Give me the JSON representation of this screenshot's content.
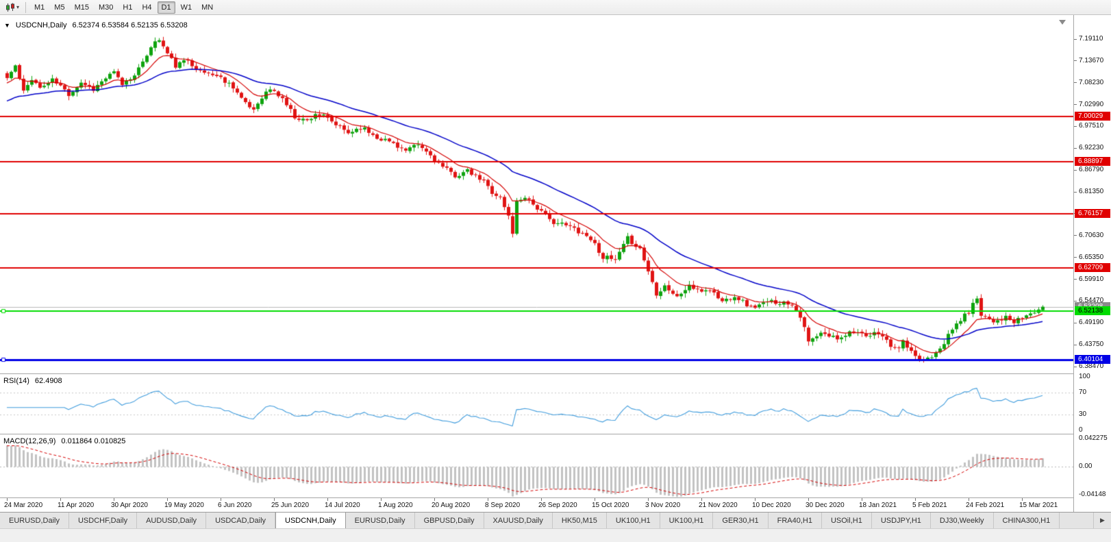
{
  "toolbar": {
    "caret": "▾",
    "timeframes": [
      {
        "label": "M1",
        "active": false
      },
      {
        "label": "M5",
        "active": false
      },
      {
        "label": "M15",
        "active": false
      },
      {
        "label": "M30",
        "active": false
      },
      {
        "label": "H1",
        "active": false
      },
      {
        "label": "H4",
        "active": false
      },
      {
        "label": "D1",
        "active": true
      },
      {
        "label": "W1",
        "active": false
      },
      {
        "label": "MN",
        "active": false
      }
    ]
  },
  "icons": {
    "chart_type": "candlestick-chart-icon",
    "tab_scroll_right": "▶"
  },
  "chart": {
    "collapse_glyph": "▼",
    "symbol_period": "USDCNH,Daily",
    "ohlc": "6.52374 6.53584 6.52135 6.53208"
  },
  "bid": {
    "label": "6.53208",
    "price": 6.53208
  },
  "levels": [
    {
      "label": "7.00029",
      "price": 7.00029,
      "color": "#E00000",
      "text_color": "#FFFFFF",
      "thickness": 2,
      "handle": false
    },
    {
      "label": "6.88897",
      "price": 6.88897,
      "color": "#E00000",
      "text_color": "#FFFFFF",
      "thickness": 2,
      "handle": false
    },
    {
      "label": "6.76157",
      "price": 6.76157,
      "color": "#E00000",
      "text_color": "#FFFFFF",
      "thickness": 2,
      "handle": false
    },
    {
      "label": "6.62709",
      "price": 6.62709,
      "color": "#E00000",
      "text_color": "#FFFFFF",
      "thickness": 2,
      "handle": false
    },
    {
      "label": "6.52138",
      "price": 6.52138,
      "color": "#00DC00",
      "text_color": "#000000",
      "thickness": 2,
      "handle": true
    },
    {
      "label": "6.40104",
      "price": 6.40104,
      "color": "#0000E6",
      "text_color": "#FFFFFF",
      "thickness": 3,
      "handle": true
    }
  ],
  "price_axis": {
    "labels": [
      "7.19110",
      "7.13670",
      "7.08230",
      "7.02990",
      "6.97510",
      "6.92230",
      "6.86790",
      "6.81350",
      "6.76030",
      "6.70630",
      "6.65350",
      "6.59910",
      "6.54470",
      "6.49190",
      "6.43750",
      "6.38470"
    ]
  },
  "rsi": {
    "name": "RSI(14)",
    "value": "62.4908",
    "period": 14,
    "levels": [
      {
        "label": "100",
        "value": 100
      },
      {
        "label": "70",
        "value": 70
      },
      {
        "label": "30",
        "value": 30
      },
      {
        "label": "0",
        "value": 0
      }
    ]
  },
  "macd": {
    "name": "MACD(12,26,9)",
    "values": "0.011864 0.010825",
    "axis": [
      {
        "label": "0.042275",
        "value": 0.042275
      },
      {
        "label": "0.00",
        "value": 0
      },
      {
        "label": "-0.04148",
        "value": -0.04148
      }
    ]
  },
  "date_axis": [
    "24 Mar 2020",
    "11 Apr 2020",
    "30 Apr 2020",
    "19 May 2020",
    "6 Jun 2020",
    "25 Jun 2020",
    "14 Jul 2020",
    "1 Aug 2020",
    "20 Aug 2020",
    "8 Sep 2020",
    "26 Sep 2020",
    "15 Oct 2020",
    "3 Nov 2020",
    "21 Nov 2020",
    "10 Dec 2020",
    "30 Dec 2020",
    "18 Jan 2021",
    "5 Feb 2021",
    "24 Feb 2021",
    "15 Mar 2021"
  ],
  "tabs": [
    {
      "label": "EURUSD,Daily",
      "active": false
    },
    {
      "label": "USDCHF,Daily",
      "active": false
    },
    {
      "label": "AUDUSD,Daily",
      "active": false
    },
    {
      "label": "USDCAD,Daily",
      "active": false
    },
    {
      "label": "USDCNH,Daily",
      "active": true
    },
    {
      "label": "EURUSD,Daily",
      "active": false
    },
    {
      "label": "GBPUSD,Daily",
      "active": false
    },
    {
      "label": "XAUUSD,Daily",
      "active": false
    },
    {
      "label": "HK50,M15",
      "active": false
    },
    {
      "label": "UK100,H1",
      "active": false
    },
    {
      "label": "UK100,H1",
      "active": false
    },
    {
      "label": "GER30,H1",
      "active": false
    },
    {
      "label": "FRA40,H1",
      "active": false
    },
    {
      "label": "USOil,H1",
      "active": false
    },
    {
      "label": "USDJPY,H1",
      "active": false
    },
    {
      "label": "DJ30,Weekly",
      "active": false
    },
    {
      "label": "CHINA300,H1",
      "active": false
    }
  ],
  "colors": {
    "candle_up": "#0FA30F",
    "candle_down": "#E01414",
    "ma_fast": "#D40000",
    "ma_slow": "#0000C8",
    "rsi_line": "#3E9BDC",
    "macd_hist": "#C2C2C2",
    "macd_signal": "#D40000",
    "level_red": "#E00000",
    "level_green": "#00DC00",
    "level_blue": "#0000E6",
    "bid_line": "#B8B8B8"
  },
  "chart_data": {
    "type": "candlestick",
    "symbol": "USDCNH",
    "period": "Daily",
    "candle_count": 253,
    "seed": 11,
    "y_top": 7.1911,
    "y_bottom": 6.3847,
    "last_candle": {
      "o": 6.52374,
      "h": 6.53584,
      "l": 6.52135,
      "c": 6.53208
    },
    "close_anchors": [
      [
        0,
        7.095
      ],
      [
        2,
        7.125
      ],
      [
        4,
        7.06
      ],
      [
        6,
        7.095
      ],
      [
        8,
        7.07
      ],
      [
        11,
        7.09
      ],
      [
        13,
        7.075
      ],
      [
        15,
        7.055
      ],
      [
        18,
        7.085
      ],
      [
        21,
        7.068
      ],
      [
        24,
        7.095
      ],
      [
        26,
        7.108
      ],
      [
        28,
        7.08
      ],
      [
        30,
        7.095
      ],
      [
        33,
        7.13
      ],
      [
        35,
        7.175
      ],
      [
        37,
        7.19
      ],
      [
        39,
        7.155
      ],
      [
        41,
        7.125
      ],
      [
        44,
        7.14
      ],
      [
        47,
        7.11
      ],
      [
        50,
        7.105
      ],
      [
        52,
        7.095
      ],
      [
        55,
        7.075
      ],
      [
        58,
        7.03
      ],
      [
        60,
        7.018
      ],
      [
        62,
        7.05
      ],
      [
        64,
        7.068
      ],
      [
        67,
        7.045
      ],
      [
        70,
        7.0
      ],
      [
        73,
        6.99
      ],
      [
        75,
        7.008
      ],
      [
        77,
        7.0
      ],
      [
        80,
        6.98
      ],
      [
        83,
        6.96
      ],
      [
        86,
        6.975
      ],
      [
        90,
        6.95
      ],
      [
        94,
        6.935
      ],
      [
        97,
        6.915
      ],
      [
        100,
        6.93
      ],
      [
        103,
        6.905
      ],
      [
        106,
        6.875
      ],
      [
        109,
        6.855
      ],
      [
        112,
        6.865
      ],
      [
        116,
        6.84
      ],
      [
        118,
        6.815
      ],
      [
        120,
        6.8
      ],
      [
        122,
        6.755
      ],
      [
        123,
        6.715
      ],
      [
        124,
        6.79
      ],
      [
        126,
        6.805
      ],
      [
        129,
        6.775
      ],
      [
        132,
        6.745
      ],
      [
        135,
        6.735
      ],
      [
        138,
        6.725
      ],
      [
        142,
        6.7
      ],
      [
        145,
        6.655
      ],
      [
        148,
        6.645
      ],
      [
        151,
        6.7
      ],
      [
        154,
        6.675
      ],
      [
        156,
        6.62
      ],
      [
        158,
        6.565
      ],
      [
        160,
        6.585
      ],
      [
        163,
        6.555
      ],
      [
        166,
        6.585
      ],
      [
        168,
        6.57
      ],
      [
        171,
        6.575
      ],
      [
        174,
        6.545
      ],
      [
        177,
        6.56
      ],
      [
        181,
        6.53
      ],
      [
        186,
        6.545
      ],
      [
        191,
        6.54
      ],
      [
        193,
        6.51
      ],
      [
        195,
        6.445
      ],
      [
        198,
        6.465
      ],
      [
        202,
        6.455
      ],
      [
        206,
        6.475
      ],
      [
        209,
        6.455
      ],
      [
        212,
        6.47
      ],
      [
        216,
        6.425
      ],
      [
        218,
        6.445
      ],
      [
        221,
        6.405
      ],
      [
        223,
        6.403
      ],
      [
        225,
        6.412
      ],
      [
        228,
        6.445
      ],
      [
        231,
        6.49
      ],
      [
        234,
        6.52
      ],
      [
        236,
        6.555
      ],
      [
        237,
        6.515
      ],
      [
        240,
        6.498
      ],
      [
        243,
        6.505
      ],
      [
        245,
        6.492
      ],
      [
        247,
        6.505
      ],
      [
        249,
        6.515
      ],
      [
        252,
        6.53
      ]
    ]
  }
}
